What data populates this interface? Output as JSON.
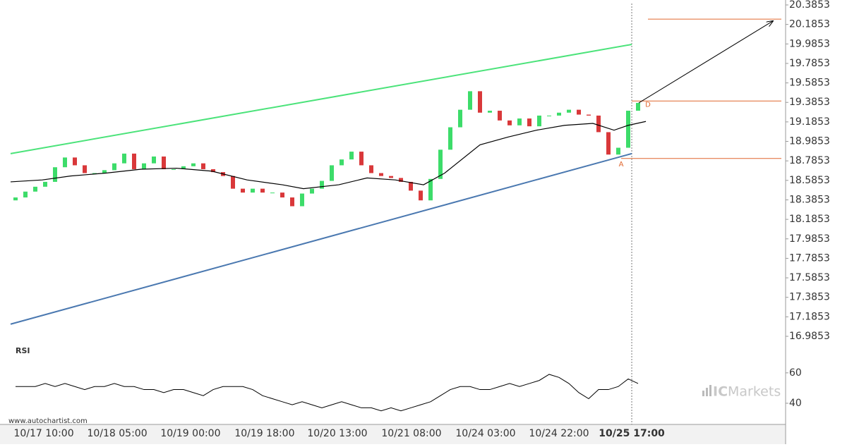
{
  "chart_data": {
    "type": "candlestick",
    "xlim": [
      -0.5,
      77.5
    ],
    "ylim": [
      16.9853,
      20.3853
    ],
    "yticks": [
      20.3853,
      20.1853,
      19.9853,
      19.7853,
      19.5853,
      19.3853,
      19.1853,
      18.9853,
      18.7853,
      18.5853,
      18.3853,
      18.1853,
      17.9853,
      17.7853,
      17.5853,
      17.3853,
      17.1853,
      16.9853
    ],
    "xticks": [
      {
        "value": 2.86,
        "label": "10/17 10:00"
      },
      {
        "value": 10.29,
        "label": "10/18 05:00"
      },
      {
        "value": 17.71,
        "label": "10/19 00:00"
      },
      {
        "value": 25.21,
        "label": "10/19 18:00"
      },
      {
        "value": 32.57,
        "label": "10/20 13:00"
      },
      {
        "value": 40.07,
        "label": "10/21 08:00"
      },
      {
        "value": 47.57,
        "label": "10/24 03:00"
      },
      {
        "value": 55.0,
        "label": "10/24 22:00"
      },
      {
        "value": 62.36,
        "label": "10/25 17:00"
      }
    ],
    "up_color": "#3ddc6a",
    "down_color": "#d9383a",
    "open": [
      18.38,
      18.41,
      18.47,
      18.52,
      18.57,
      18.72,
      18.82,
      18.74,
      18.66,
      18.66,
      18.69,
      18.76,
      18.86,
      18.7,
      18.76,
      18.83,
      18.7,
      18.7,
      18.73,
      18.76,
      18.7,
      18.67,
      18.63,
      18.5,
      18.46,
      18.5,
      18.46,
      18.46,
      18.41,
      18.32,
      18.45,
      18.5,
      18.58,
      18.74,
      18.8,
      18.88,
      18.74,
      18.66,
      18.63,
      18.61,
      18.57,
      18.48,
      18.38,
      18.6,
      18.9,
      19.13,
      19.31,
      19.5,
      19.28,
      19.3,
      19.2,
      19.15,
      19.22,
      19.14,
      19.25,
      19.25,
      19.28,
      19.31,
      19.26,
      19.25,
      19.08,
      18.85,
      18.92,
      19.3
    ],
    "close": [
      18.41,
      18.47,
      18.52,
      18.57,
      18.72,
      18.82,
      18.74,
      18.66,
      18.66,
      18.69,
      18.76,
      18.86,
      18.7,
      18.76,
      18.83,
      18.7,
      18.7,
      18.73,
      18.76,
      18.7,
      18.67,
      18.63,
      18.5,
      18.46,
      18.5,
      18.46,
      18.46,
      18.41,
      18.32,
      18.45,
      18.5,
      18.58,
      18.74,
      18.8,
      18.88,
      18.74,
      18.66,
      18.63,
      18.61,
      18.57,
      18.48,
      18.38,
      18.6,
      18.9,
      19.13,
      19.31,
      19.5,
      19.28,
      19.3,
      19.2,
      19.15,
      19.22,
      19.14,
      19.25,
      19.25,
      19.28,
      19.31,
      19.26,
      19.25,
      19.08,
      18.85,
      18.92,
      19.3,
      19.38
    ],
    "ma": {
      "color": "#000000",
      "x": [
        -0.5,
        2.71,
        5.57,
        9.14,
        12.71,
        16.29,
        19.86,
        23.43,
        27.0,
        29.14,
        32.71,
        35.57,
        38.43,
        41.29,
        43.43,
        47.0,
        49.86,
        52.71,
        55.57,
        58.43,
        60.57,
        62.0,
        63.79
      ],
      "values": [
        18.57,
        18.59,
        18.63,
        18.66,
        18.7,
        18.71,
        18.68,
        18.59,
        18.54,
        18.5,
        18.54,
        18.61,
        18.59,
        18.54,
        18.66,
        18.95,
        19.03,
        19.1,
        19.15,
        19.17,
        19.1,
        19.15,
        19.19
      ]
    },
    "channel_upper": {
      "color": "#4be37a",
      "x": [
        -0.5,
        62.36
      ],
      "y": [
        18.86,
        19.98
      ]
    },
    "channel_lower": {
      "color": "#4a78b0",
      "x": [
        -0.5,
        62.36
      ],
      "y": [
        17.11,
        18.86
      ]
    },
    "levels": [
      {
        "x": [
          62.36,
          77.5
        ],
        "y": 19.4
      },
      {
        "x": [
          61.29,
          77.5
        ],
        "y": 18.81
      },
      {
        "x": [
          64.0,
          77.5
        ],
        "y": 20.24
      }
    ],
    "level_color": "#e0672f",
    "arrow": {
      "x": [
        63.07,
        76.64
      ],
      "y": [
        19.38,
        20.22
      ]
    },
    "annotations": [
      {
        "text": "A",
        "x": 61.29,
        "y": 18.75
      },
      {
        "text": "D",
        "x": 64.0,
        "y": 19.36
      }
    ],
    "rsi": {
      "title": "RSI",
      "ylim": [
        27,
        78
      ],
      "yticks": [
        60,
        40
      ],
      "values": [
        51,
        51,
        51,
        53,
        51,
        53,
        51,
        49,
        51,
        51,
        53,
        51,
        51,
        49,
        49,
        47,
        49,
        49,
        47,
        45,
        49,
        51,
        51,
        51,
        49,
        45,
        43,
        41,
        39,
        41,
        39,
        37,
        39,
        41,
        39,
        37,
        37,
        35,
        37,
        35,
        37,
        39,
        41,
        45,
        49,
        51,
        51,
        49,
        49,
        51,
        53,
        51,
        53,
        55,
        59,
        57,
        53,
        47,
        43,
        49,
        49,
        51,
        56,
        53
      ]
    },
    "watermark": "www.autochartist.com",
    "brand": {
      "prefix": "IC",
      "name": "Markets"
    }
  }
}
